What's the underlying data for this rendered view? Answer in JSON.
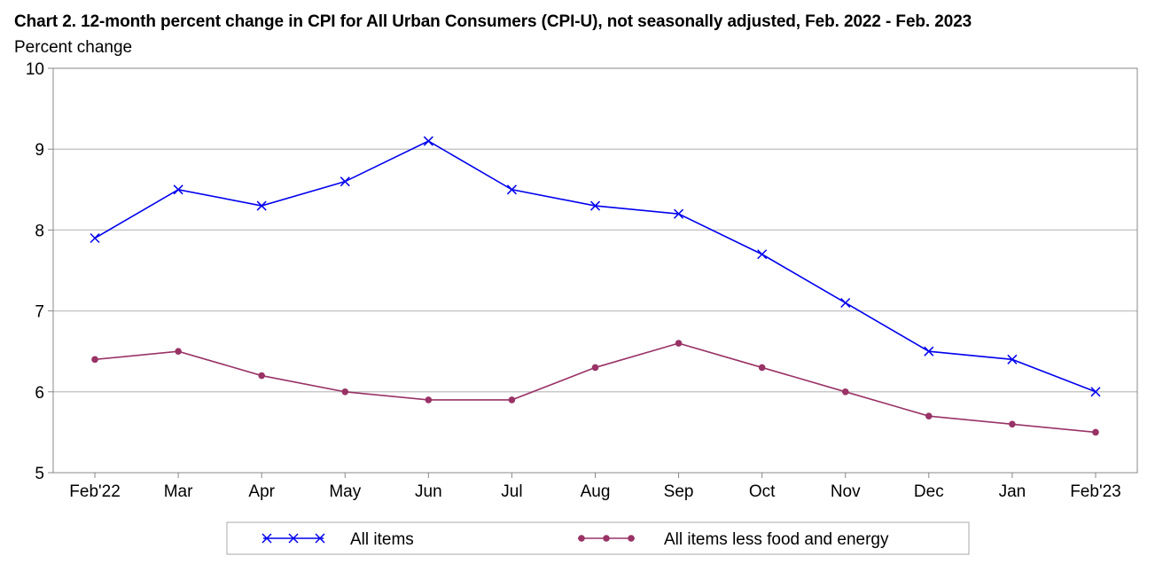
{
  "chart_data": {
    "type": "line",
    "title": "Chart 2. 12-month percent change in CPI for All Urban Consumers (CPI-U), not seasonally adjusted, Feb. 2022 - Feb. 2023",
    "ylabel": "Percent change",
    "xlabel": "",
    "categories": [
      "Feb'22",
      "Mar",
      "Apr",
      "May",
      "Jun",
      "Jul",
      "Aug",
      "Sep",
      "Oct",
      "Nov",
      "Dec",
      "Jan",
      "Feb'23"
    ],
    "ylim": [
      5,
      10
    ],
    "yticks": [
      5,
      6,
      7,
      8,
      9,
      10
    ],
    "grid": "horizontal",
    "legend_position": "bottom",
    "series": [
      {
        "name": "All items",
        "color": "#0000ee",
        "marker": "x",
        "values": [
          7.9,
          8.5,
          8.3,
          8.6,
          9.1,
          8.5,
          8.3,
          8.2,
          7.7,
          7.1,
          6.5,
          6.4,
          6.0
        ]
      },
      {
        "name": "All items less food and energy",
        "color": "#993366",
        "marker": "circle",
        "values": [
          6.4,
          6.5,
          6.2,
          6.0,
          5.9,
          5.9,
          6.3,
          6.6,
          6.3,
          6.0,
          5.7,
          5.6,
          5.5
        ]
      }
    ]
  }
}
